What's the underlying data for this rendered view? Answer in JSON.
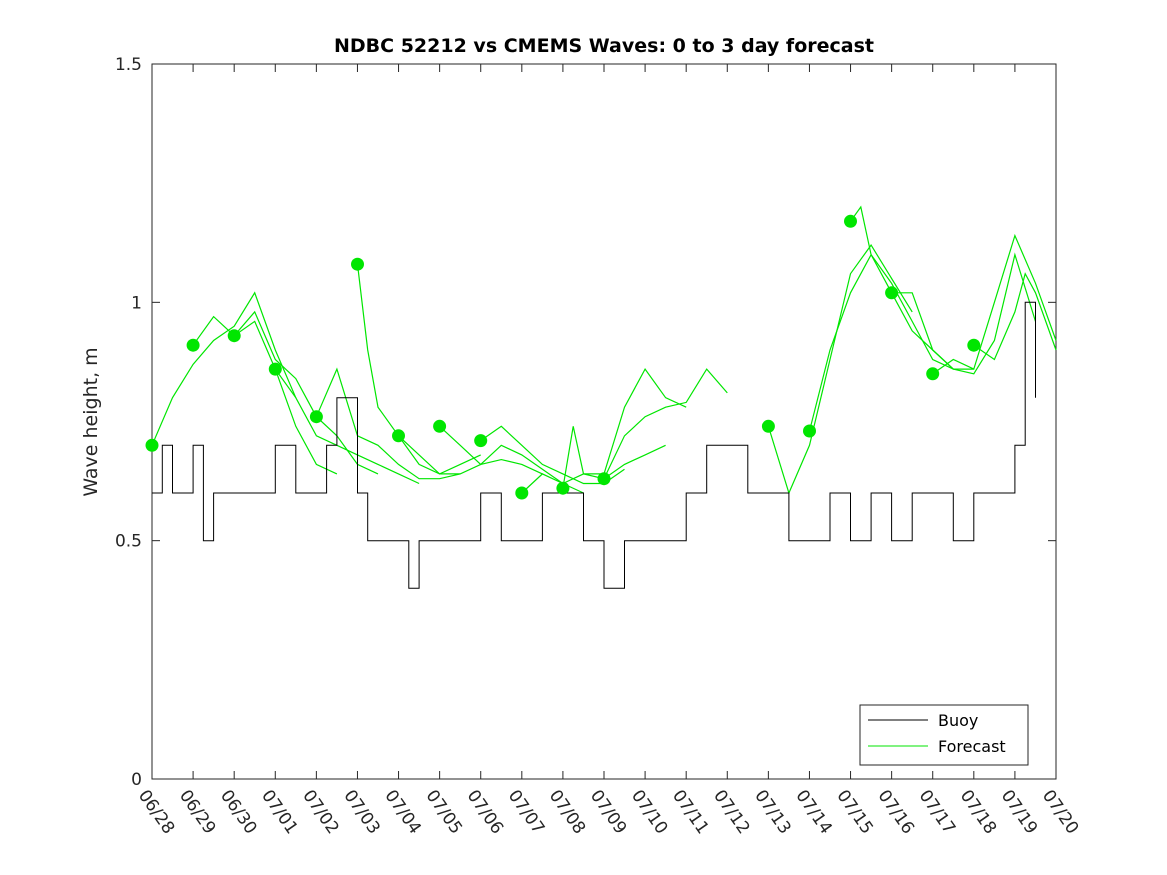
{
  "chart_data": {
    "type": "line",
    "title": "NDBC 52212 vs CMEMS Waves: 0 to 3 day forecast",
    "xlabel": "",
    "ylabel": "Wave height, m",
    "ylim": [
      0,
      1.5
    ],
    "yticks": [
      0,
      0.5,
      1,
      1.5
    ],
    "ytick_labels": [
      "0",
      "0.5",
      "1",
      "1.5"
    ],
    "x_start": "06/28",
    "x_end": "07/20",
    "xtick_labels": [
      "06/28",
      "06/29",
      "06/30",
      "07/01",
      "07/02",
      "07/03",
      "07/04",
      "07/05",
      "07/06",
      "07/07",
      "07/08",
      "07/09",
      "07/10",
      "07/11",
      "07/12",
      "07/13",
      "07/14",
      "07/15",
      "07/16",
      "07/17",
      "07/18",
      "07/19",
      "07/20"
    ],
    "grid": false,
    "legend": {
      "position": "bottom-right",
      "entries": [
        "Buoy",
        "Forecast"
      ]
    },
    "colors": {
      "buoy": "#000000",
      "forecast": "#00e600"
    },
    "series": [
      {
        "name": "Buoy",
        "x": [
          "06/28",
          "06/28 06h",
          "06/28 12h",
          "06/29",
          "06/29 06h",
          "06/29 12h",
          "06/30",
          "06/30 12h",
          "07/01",
          "07/01 12h",
          "07/02",
          "07/02 06h",
          "07/02 12h",
          "07/03",
          "07/03 06h",
          "07/03 12h",
          "07/04",
          "07/04 06h",
          "07/04 12h",
          "07/05",
          "07/05 12h",
          "07/06",
          "07/06 06h",
          "07/06 12h",
          "07/07",
          "07/07 12h",
          "07/08",
          "07/08 12h",
          "07/09",
          "07/09 12h",
          "07/10",
          "07/10 12h",
          "07/11",
          "07/11 12h",
          "07/12",
          "07/12 12h",
          "07/13",
          "07/13 12h",
          "07/14",
          "07/14 12h",
          "07/15",
          "07/15 12h",
          "07/16",
          "07/16 12h",
          "07/17",
          "07/17 12h",
          "07/18",
          "07/18 12h",
          "07/19",
          "07/19 06h",
          "07/19 12h"
        ],
        "values": [
          0.6,
          0.7,
          0.6,
          0.7,
          0.5,
          0.6,
          0.6,
          0.6,
          0.7,
          0.6,
          0.6,
          0.7,
          0.8,
          0.6,
          0.5,
          0.5,
          0.5,
          0.4,
          0.5,
          0.5,
          0.5,
          0.6,
          0.6,
          0.5,
          0.5,
          0.6,
          0.6,
          0.5,
          0.4,
          0.5,
          0.5,
          0.5,
          0.6,
          0.7,
          0.7,
          0.6,
          0.6,
          0.5,
          0.5,
          0.6,
          0.5,
          0.6,
          0.5,
          0.6,
          0.6,
          0.5,
          0.6,
          0.6,
          0.7,
          1.0,
          0.8
        ]
      },
      {
        "name": "Forecast",
        "runs": [
          {
            "start": "06/28",
            "points": [
              [
                "06/28",
                0.7
              ],
              [
                "06/28 12h",
                0.8
              ],
              [
                "06/29",
                0.87
              ],
              [
                "06/29 12h",
                0.92
              ],
              [
                "06/30",
                0.95
              ],
              [
                "06/30 12h",
                1.02
              ],
              [
                "07/01",
                0.9
              ],
              [
                "07/01 12h",
                0.8
              ]
            ]
          },
          {
            "start": "06/29",
            "points": [
              [
                "06/29",
                0.91
              ],
              [
                "06/29 12h",
                0.97
              ],
              [
                "06/30",
                0.93
              ],
              [
                "06/30 12h",
                0.96
              ],
              [
                "07/01",
                0.86
              ],
              [
                "07/01 12h",
                0.74
              ],
              [
                "07/02",
                0.66
              ],
              [
                "07/02 12h",
                0.64
              ]
            ]
          },
          {
            "start": "06/30",
            "points": [
              [
                "06/30",
                0.93
              ],
              [
                "06/30 12h",
                0.98
              ],
              [
                "07/01",
                0.88
              ],
              [
                "07/01 12h",
                0.84
              ],
              [
                "07/02",
                0.76
              ],
              [
                "07/02 12h",
                0.72
              ],
              [
                "07/03",
                0.66
              ],
              [
                "07/03 12h",
                0.64
              ]
            ]
          },
          {
            "start": "07/01",
            "points": [
              [
                "07/01",
                0.86
              ],
              [
                "07/01 12h",
                0.8
              ],
              [
                "07/02",
                0.72
              ],
              [
                "07/02 12h",
                0.7
              ],
              [
                "07/03",
                0.68
              ],
              [
                "07/03 12h",
                0.66
              ],
              [
                "07/04",
                0.64
              ],
              [
                "07/04 12h",
                0.62
              ]
            ]
          },
          {
            "start": "07/02",
            "points": [
              [
                "07/02",
                0.76
              ],
              [
                "07/02 12h",
                0.86
              ],
              [
                "07/03",
                0.72
              ],
              [
                "07/03 12h",
                0.7
              ],
              [
                "07/04",
                0.66
              ],
              [
                "07/04 12h",
                0.63
              ],
              [
                "07/05",
                0.63
              ],
              [
                "07/05 12h",
                0.64
              ]
            ]
          },
          {
            "start": "07/03",
            "points": [
              [
                "07/03",
                1.08
              ],
              [
                "07/03 06h",
                0.9
              ],
              [
                "07/03 12h",
                0.78
              ],
              [
                "07/04",
                0.72
              ],
              [
                "07/04 12h",
                0.68
              ],
              [
                "07/05",
                0.64
              ],
              [
                "07/05 12h",
                0.66
              ],
              [
                "07/06",
                0.68
              ]
            ]
          },
          {
            "start": "07/04",
            "points": [
              [
                "07/04",
                0.72
              ],
              [
                "07/04 12h",
                0.66
              ],
              [
                "07/05",
                0.64
              ],
              [
                "07/05 12h",
                0.64
              ],
              [
                "07/06",
                0.66
              ],
              [
                "07/06 12h",
                0.67
              ],
              [
                "07/07",
                0.66
              ],
              [
                "07/07 12h",
                0.64
              ]
            ]
          },
          {
            "start": "07/05",
            "points": [
              [
                "07/05",
                0.74
              ],
              [
                "07/05 12h",
                0.7
              ],
              [
                "07/06",
                0.66
              ],
              [
                "07/06 12h",
                0.7
              ],
              [
                "07/07",
                0.68
              ],
              [
                "07/07 12h",
                0.65
              ],
              [
                "07/08",
                0.62
              ],
              [
                "07/08 12h",
                0.6
              ]
            ]
          },
          {
            "start": "07/06",
            "points": [
              [
                "07/06",
                0.71
              ],
              [
                "07/06 12h",
                0.74
              ],
              [
                "07/07",
                0.7
              ],
              [
                "07/07 12h",
                0.66
              ],
              [
                "07/08",
                0.64
              ],
              [
                "07/08 12h",
                0.62
              ],
              [
                "07/09",
                0.62
              ],
              [
                "07/09 12h",
                0.65
              ]
            ]
          },
          {
            "start": "07/07",
            "points": [
              [
                "07/07",
                0.6
              ],
              [
                "07/07 12h",
                0.64
              ],
              [
                "07/08",
                0.62
              ],
              [
                "07/08 12h",
                0.64
              ],
              [
                "07/09",
                0.63
              ],
              [
                "07/09 12h",
                0.66
              ],
              [
                "07/10",
                0.68
              ],
              [
                "07/10 12h",
                0.7
              ]
            ]
          },
          {
            "start": "07/08",
            "points": [
              [
                "07/08",
                0.61
              ],
              [
                "07/08 06h",
                0.74
              ],
              [
                "07/08 12h",
                0.64
              ],
              [
                "07/09",
                0.64
              ],
              [
                "07/09 12h",
                0.78
              ],
              [
                "07/10",
                0.86
              ],
              [
                "07/10 12h",
                0.8
              ],
              [
                "07/11",
                0.78
              ]
            ]
          },
          {
            "start": "07/09",
            "points": [
              [
                "07/09",
                0.63
              ],
              [
                "07/09 12h",
                0.72
              ],
              [
                "07/10",
                0.76
              ],
              [
                "07/10 12h",
                0.78
              ],
              [
                "07/11",
                0.79
              ],
              [
                "07/11 12h",
                0.86
              ],
              [
                "07/12",
                0.81
              ]
            ]
          },
          {
            "start": "07/13",
            "points": [
              [
                "07/13",
                0.74
              ],
              [
                "07/13 12h",
                0.6
              ],
              [
                "07/14",
                0.7
              ],
              [
                "07/14 12h",
                0.88
              ],
              [
                "07/15",
                1.06
              ],
              [
                "07/15 12h",
                1.12
              ],
              [
                "07/16",
                1.05
              ],
              [
                "07/16 12h",
                0.98
              ]
            ]
          },
          {
            "start": "07/14",
            "points": [
              [
                "07/14",
                0.73
              ],
              [
                "07/14 12h",
                0.9
              ],
              [
                "07/15",
                1.02
              ],
              [
                "07/15 12h",
                1.1
              ],
              [
                "07/16",
                1.04
              ],
              [
                "07/16 12h",
                0.96
              ],
              [
                "07/17",
                0.88
              ],
              [
                "07/17 12h",
                0.86
              ]
            ]
          },
          {
            "start": "07/15",
            "points": [
              [
                "07/15",
                1.17
              ],
              [
                "07/15 06h",
                1.2
              ],
              [
                "07/15 12h",
                1.1
              ],
              [
                "07/16",
                1.02
              ],
              [
                "07/16 12h",
                0.94
              ],
              [
                "07/17",
                0.9
              ],
              [
                "07/17 12h",
                0.86
              ],
              [
                "07/18",
                0.86
              ]
            ]
          },
          {
            "start": "07/16",
            "points": [
              [
                "07/16",
                1.02
              ],
              [
                "07/16 12h",
                1.02
              ],
              [
                "07/17",
                0.9
              ],
              [
                "07/17 12h",
                0.86
              ],
              [
                "07/18",
                0.85
              ],
              [
                "07/18 12h",
                0.92
              ],
              [
                "07/19",
                1.1
              ],
              [
                "07/19 12h",
                0.96
              ]
            ]
          },
          {
            "start": "07/17",
            "points": [
              [
                "07/17",
                0.85
              ],
              [
                "07/17 12h",
                0.88
              ],
              [
                "07/18",
                0.86
              ],
              [
                "07/18 12h",
                1.0
              ],
              [
                "07/19",
                1.14
              ],
              [
                "07/19 12h",
                1.04
              ],
              [
                "07/20",
                0.92
              ]
            ]
          },
          {
            "start": "07/18",
            "points": [
              [
                "07/18",
                0.91
              ],
              [
                "07/18 12h",
                0.88
              ],
              [
                "07/19",
                0.98
              ],
              [
                "07/19 06h",
                1.06
              ],
              [
                "07/19 12h",
                1.02
              ],
              [
                "07/20",
                0.9
              ]
            ]
          }
        ]
      }
    ]
  }
}
